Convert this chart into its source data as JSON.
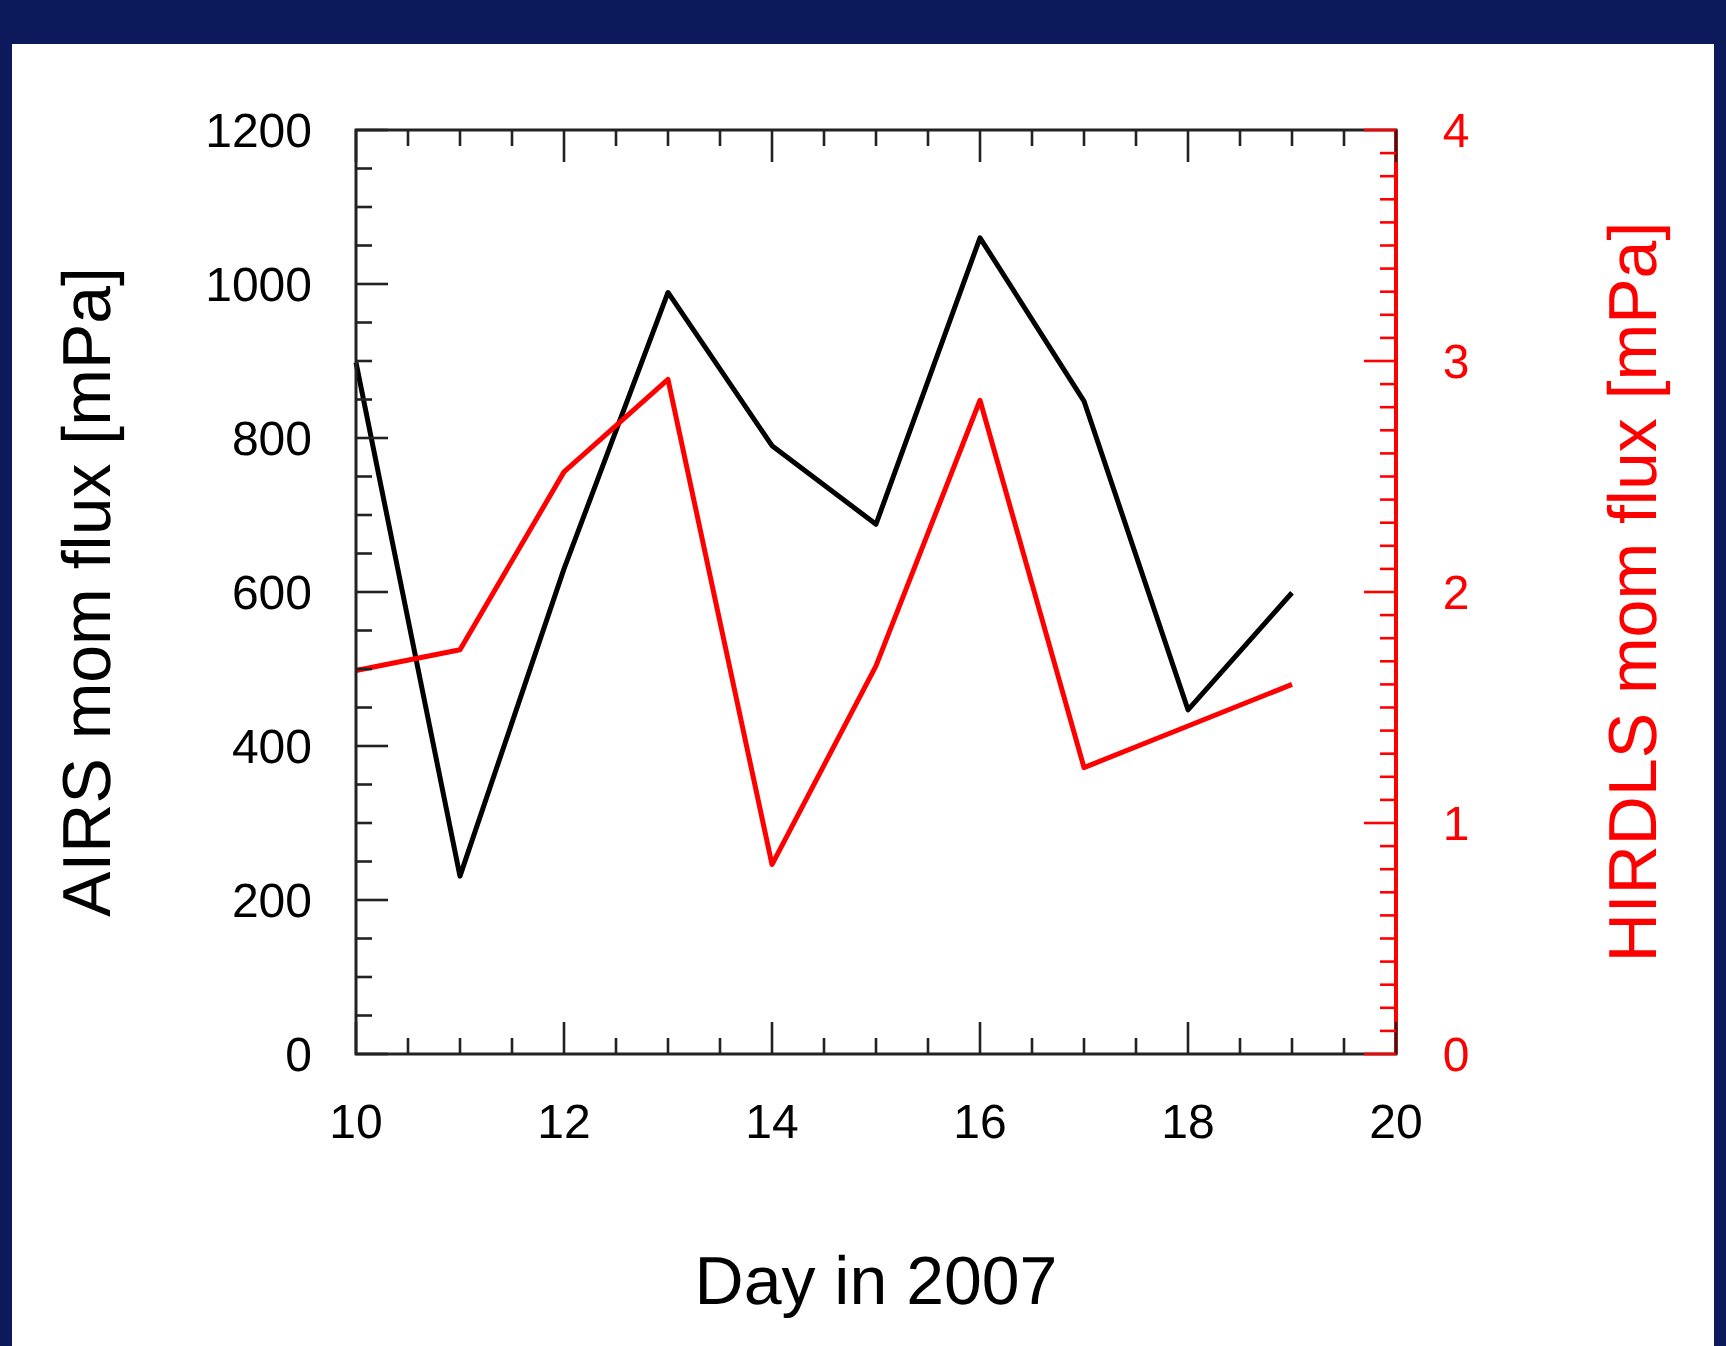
{
  "chart_data": {
    "type": "line",
    "xlabel": "Day in 2007",
    "ylabel": "AIRS mom flux [mPa]",
    "y2label": "HIRDLS mom flux [mPa]",
    "x": [
      10,
      11,
      12,
      13,
      14,
      15,
      16,
      17,
      18,
      19
    ],
    "series": [
      {
        "color": "#000000",
        "values": [
          898,
          231,
          630,
          989,
          790,
          688,
          1060,
          848,
          447,
          599
        ]
      },
      {
        "color": "#ff0000",
        "axis": "y2",
        "values": [
          1.66,
          1.75,
          2.52,
          2.92,
          0.82,
          1.68,
          2.83,
          1.24,
          1.42,
          1.6
        ]
      }
    ],
    "xlim": [
      10,
      20
    ],
    "xticks": [
      10,
      {
        "value": 10.5,
        "label": null
      },
      {
        "value": 11,
        "label": null
      },
      {
        "value": 11.5,
        "label": null
      },
      12,
      {
        "value": 12.5,
        "label": null
      },
      {
        "value": 13,
        "label": null
      },
      {
        "value": 13.5,
        "label": null
      },
      14,
      {
        "value": 14.5,
        "label": null
      },
      {
        "value": 15,
        "label": null
      },
      {
        "value": 15.5,
        "label": null
      },
      16,
      {
        "value": 16.5,
        "label": null
      },
      {
        "value": 17,
        "label": null
      },
      {
        "value": 17.5,
        "label": null
      },
      18,
      {
        "value": 18.5,
        "label": null
      },
      {
        "value": 19,
        "label": null
      },
      {
        "value": 19.5,
        "label": null
      },
      20
    ],
    "ylim": [
      0,
      1200
    ],
    "yticks": [
      0,
      {
        "value": 50,
        "label": null
      },
      {
        "value": 100,
        "label": null
      },
      {
        "value": 150,
        "label": null
      },
      200,
      {
        "value": 250,
        "label": null
      },
      {
        "value": 300,
        "label": null
      },
      {
        "value": 350,
        "label": null
      },
      400,
      {
        "value": 450,
        "label": null
      },
      {
        "value": 500,
        "label": null
      },
      {
        "value": 550,
        "label": null
      },
      600,
      {
        "value": 650,
        "label": null
      },
      {
        "value": 700,
        "label": null
      },
      {
        "value": 750,
        "label": null
      },
      800,
      {
        "value": 850,
        "label": null
      },
      {
        "value": 900,
        "label": null
      },
      {
        "value": 950,
        "label": null
      },
      1000,
      {
        "value": 1050,
        "label": null
      },
      {
        "value": 1100,
        "label": null
      },
      {
        "value": 1150,
        "label": null
      },
      1200
    ],
    "y2lim": [
      0,
      4
    ],
    "y2ticks": [
      0,
      {
        "value": 0.1,
        "label": null
      },
      {
        "value": 0.2,
        "label": null
      },
      {
        "value": 0.3,
        "label": null
      },
      {
        "value": 0.4,
        "label": null
      },
      {
        "value": 0.5,
        "label": null
      },
      {
        "value": 0.6,
        "label": null
      },
      {
        "value": 0.7,
        "label": null
      },
      {
        "value": 0.8,
        "label": null
      },
      {
        "value": 0.9,
        "label": null
      },
      1,
      {
        "value": 1.1,
        "label": null
      },
      {
        "value": 1.2,
        "label": null
      },
      {
        "value": 1.3,
        "label": null
      },
      {
        "value": 1.4,
        "label": null
      },
      {
        "value": 1.5,
        "label": null
      },
      {
        "value": 1.6,
        "label": null
      },
      {
        "value": 1.7,
        "label": null
      },
      {
        "value": 1.8,
        "label": null
      },
      {
        "value": 1.9,
        "label": null
      },
      2,
      {
        "value": 2.1,
        "label": null
      },
      {
        "value": 2.2,
        "label": null
      },
      {
        "value": 2.3,
        "label": null
      },
      {
        "value": 2.4,
        "label": null
      },
      {
        "value": 2.5,
        "label": null
      },
      {
        "value": 2.6,
        "label": null
      },
      {
        "value": 2.7,
        "label": null
      },
      {
        "value": 2.8,
        "label": null
      },
      {
        "value": 2.9,
        "label": null
      },
      3,
      {
        "value": 3.1,
        "label": null
      },
      {
        "value": 3.2,
        "label": null
      },
      {
        "value": 3.3,
        "label": null
      },
      {
        "value": 3.4,
        "label": null
      },
      {
        "value": 3.5,
        "label": null
      },
      {
        "value": 3.6,
        "label": null
      },
      {
        "value": 3.7,
        "label": null
      },
      {
        "value": 3.8,
        "label": null
      },
      {
        "value": 3.9,
        "label": null
      },
      4
    ],
    "grid": false,
    "marker": "none",
    "line_style": "solid"
  }
}
